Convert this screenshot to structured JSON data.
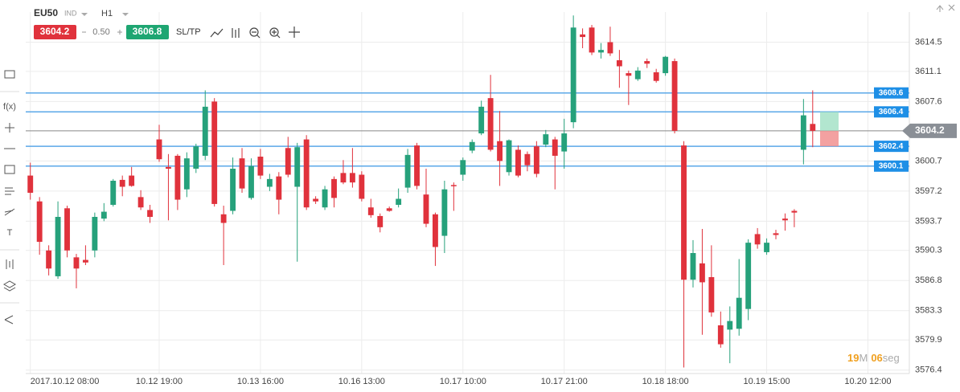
{
  "header": {
    "symbol": "EU50",
    "symbol_type": "IND",
    "timeframe": "H1",
    "bid": "3604.2",
    "spread": "0.50",
    "ask": "3606.8",
    "sltp": "SL/TP"
  },
  "toolbar": {
    "function_label": "f(x)",
    "text_tool": "T"
  },
  "timer": {
    "minutes": "19",
    "minutes_unit": "M",
    "seconds": "06",
    "seconds_unit": "seg"
  },
  "chart_data": {
    "type": "candlestick",
    "open": [
      3599.0,
      3596.0,
      3590.3,
      3587.3,
      3595.2,
      3589.5,
      3589.2,
      3590.3,
      3594.0,
      3595.6,
      3598.5,
      3599.0,
      3596.5,
      3595.0,
      3603.2,
      3600.0,
      3601.3,
      3597.4,
      3599.8,
      3601.3,
      3607.6,
      3594.5,
      3594.9,
      3601.0,
      3596.4,
      3601.2,
      3597.7,
      3598.9,
      3602.2,
      3597.7,
      3603.2,
      3596.3,
      3595.3,
      3598.6,
      3599.3,
      3599.3,
      3599.1,
      3595.3,
      3594.3,
      3595.2,
      3595.6,
      3597.6,
      3602.5,
      3596.8,
      3594.5,
      3592.0,
      3597.9,
      3599.1,
      3601.9,
      3603.9,
      3608.0,
      3603.0,
      3599.4,
      3602.0,
      3601.5,
      3602.4,
      3602.6,
      3603.2,
      3601.8,
      3605.2,
      3615.4,
      3616.2,
      3613.3,
      3614.5,
      3612.4,
      3610.9,
      3610.2,
      3612.3,
      3611.0,
      3610.9,
      3612.3,
      3602.5,
      3586.9,
      3588.8,
      3587.2,
      3581.6,
      3581.1,
      3581.2,
      3583.5,
      3592.2,
      3590.1,
      3592.3,
      3594.0,
      3594.9,
      3602.0,
      3605.0
    ],
    "high": [
      3600.5,
      3596.5,
      3590.9,
      3596.0,
      3595.5,
      3589.9,
      3590.9,
      3594.7,
      3595.8,
      3598.6,
      3599.0,
      3600.0,
      3597.3,
      3595.6,
      3604.9,
      3601.5,
      3601.5,
      3601.7,
      3602.7,
      3608.9,
      3608.0,
      3595.5,
      3601.1,
      3602.2,
      3601.0,
      3602.1,
      3599.2,
      3599.4,
      3603.5,
      3602.8,
      3603.7,
      3596.6,
      3597.8,
      3598.9,
      3600.8,
      3602.2,
      3599.5,
      3596.3,
      3594.6,
      3595.4,
      3597.5,
      3602.1,
      3602.8,
      3599.8,
      3594.7,
      3598.4,
      3598.2,
      3601.1,
      3603.2,
      3607.7,
      3610.7,
      3606.5,
      3603.2,
      3602.5,
      3601.8,
      3603.0,
      3604.3,
      3603.5,
      3605.6,
      3617.6,
      3616.1,
      3616.5,
      3614.4,
      3616.3,
      3613.6,
      3611.2,
      3611.6,
      3612.6,
      3611.4,
      3612.9,
      3612.6,
      3603.0,
      3591.5,
      3592.8,
      3590.9,
      3583.2,
      3583.8,
      3589.3,
      3591.6,
      3592.9,
      3591.7,
      3592.7,
      3594.6,
      3595.1,
      3607.9,
      3608.9
    ],
    "low": [
      3596.2,
      3589.8,
      3587.4,
      3587.0,
      3589.5,
      3585.9,
      3588.6,
      3589.5,
      3593.7,
      3595.4,
      3596.6,
      3597.7,
      3595.0,
      3593.5,
      3600.6,
      3593.8,
      3595.0,
      3596.5,
      3599.3,
      3600.8,
      3595.4,
      3588.6,
      3594.5,
      3597.0,
      3596.2,
      3598.6,
      3597.2,
      3594.5,
      3598.8,
      3589.0,
      3595.0,
      3595.7,
      3595.0,
      3595.3,
      3598.0,
      3597.6,
      3596.0,
      3594.1,
      3592.4,
      3594.8,
      3595.3,
      3597.0,
      3597.4,
      3593.0,
      3588.5,
      3590.0,
      3594.9,
      3598.4,
      3601.6,
      3603.7,
      3601.8,
      3597.8,
      3599.0,
      3598.8,
      3599.5,
      3598.8,
      3602.3,
      3597.4,
      3599.8,
      3604.5,
      3613.8,
      3613.0,
      3612.6,
      3612.9,
      3609.2,
      3607.2,
      3610.0,
      3611.5,
      3609.8,
      3610.6,
      3603.9,
      3576.7,
      3586.0,
      3580.5,
      3582.6,
      3579.0,
      3577.2,
      3580.4,
      3582.2,
      3590.5,
      3589.8,
      3591.6,
      3592.6,
      3593.0,
      3600.3,
      3602.3
    ],
    "close": [
      3597.0,
      3591.3,
      3588.2,
      3594.2,
      3590.3,
      3588.2,
      3588.9,
      3594.2,
      3594.8,
      3598.4,
      3597.7,
      3597.8,
      3595.3,
      3594.2,
      3600.9,
      3599.8,
      3596.2,
      3601.0,
      3602.4,
      3607.0,
      3595.7,
      3593.5,
      3599.8,
      3597.5,
      3600.1,
      3599.0,
      3598.6,
      3596.2,
      3599.1,
      3602.3,
      3595.3,
      3596.0,
      3597.4,
      3596.4,
      3598.2,
      3598.2,
      3596.3,
      3594.4,
      3593.0,
      3594.9,
      3596.3,
      3601.4,
      3597.8,
      3593.4,
      3590.7,
      3597.4,
      3597.8,
      3600.8,
      3602.9,
      3607.0,
      3602.0,
      3600.7,
      3603.1,
      3599.0,
      3600.2,
      3599.2,
      3603.8,
      3601.3,
      3603.9,
      3616.2,
      3615.1,
      3613.3,
      3613.6,
      3613.2,
      3611.7,
      3610.6,
      3611.2,
      3612.0,
      3610.0,
      3612.8,
      3604.2,
      3586.9,
      3590.0,
      3586.6,
      3583.1,
      3579.4,
      3582.1,
      3584.8,
      3591.2,
      3591.0,
      3591.2,
      3592.1,
      3593.8,
      3594.7,
      3606.0,
      3604.2
    ],
    "xlim": [
      -0.5,
      95.5
    ],
    "xticks": [
      {
        "value": 0,
        "label": "2017.10.12 08:00"
      },
      {
        "value": 14,
        "label": "10.12 19:00"
      },
      {
        "value": 25,
        "label": "10.13 16:00"
      },
      {
        "value": 36,
        "label": "10.16 13:00"
      },
      {
        "value": 47,
        "label": "10.17 10:00"
      },
      {
        "value": 58,
        "label": "10.17 21:00"
      },
      {
        "value": 69,
        "label": "10.18 18:00"
      },
      {
        "value": 80,
        "label": "10.19 15:00"
      },
      {
        "value": 91,
        "label": "10.20 12:00"
      }
    ],
    "ylim": [
      3576.0,
      3618.0
    ],
    "yticks": [
      3614.5,
      3611.1,
      3607.6,
      3600.7,
      3597.2,
      3593.7,
      3590.3,
      3586.8,
      3583.3,
      3579.9,
      3576.4
    ],
    "grid": true,
    "up_color": "#26a17b",
    "down_color": "#e0323c",
    "line_color": "#5ba8e8",
    "price_lines": [
      3608.6,
      3606.4,
      3602.4,
      3600.1
    ],
    "current_price": 3604.2,
    "order": {
      "take_profit": 3606.4,
      "stop_loss": 3602.4
    }
  }
}
